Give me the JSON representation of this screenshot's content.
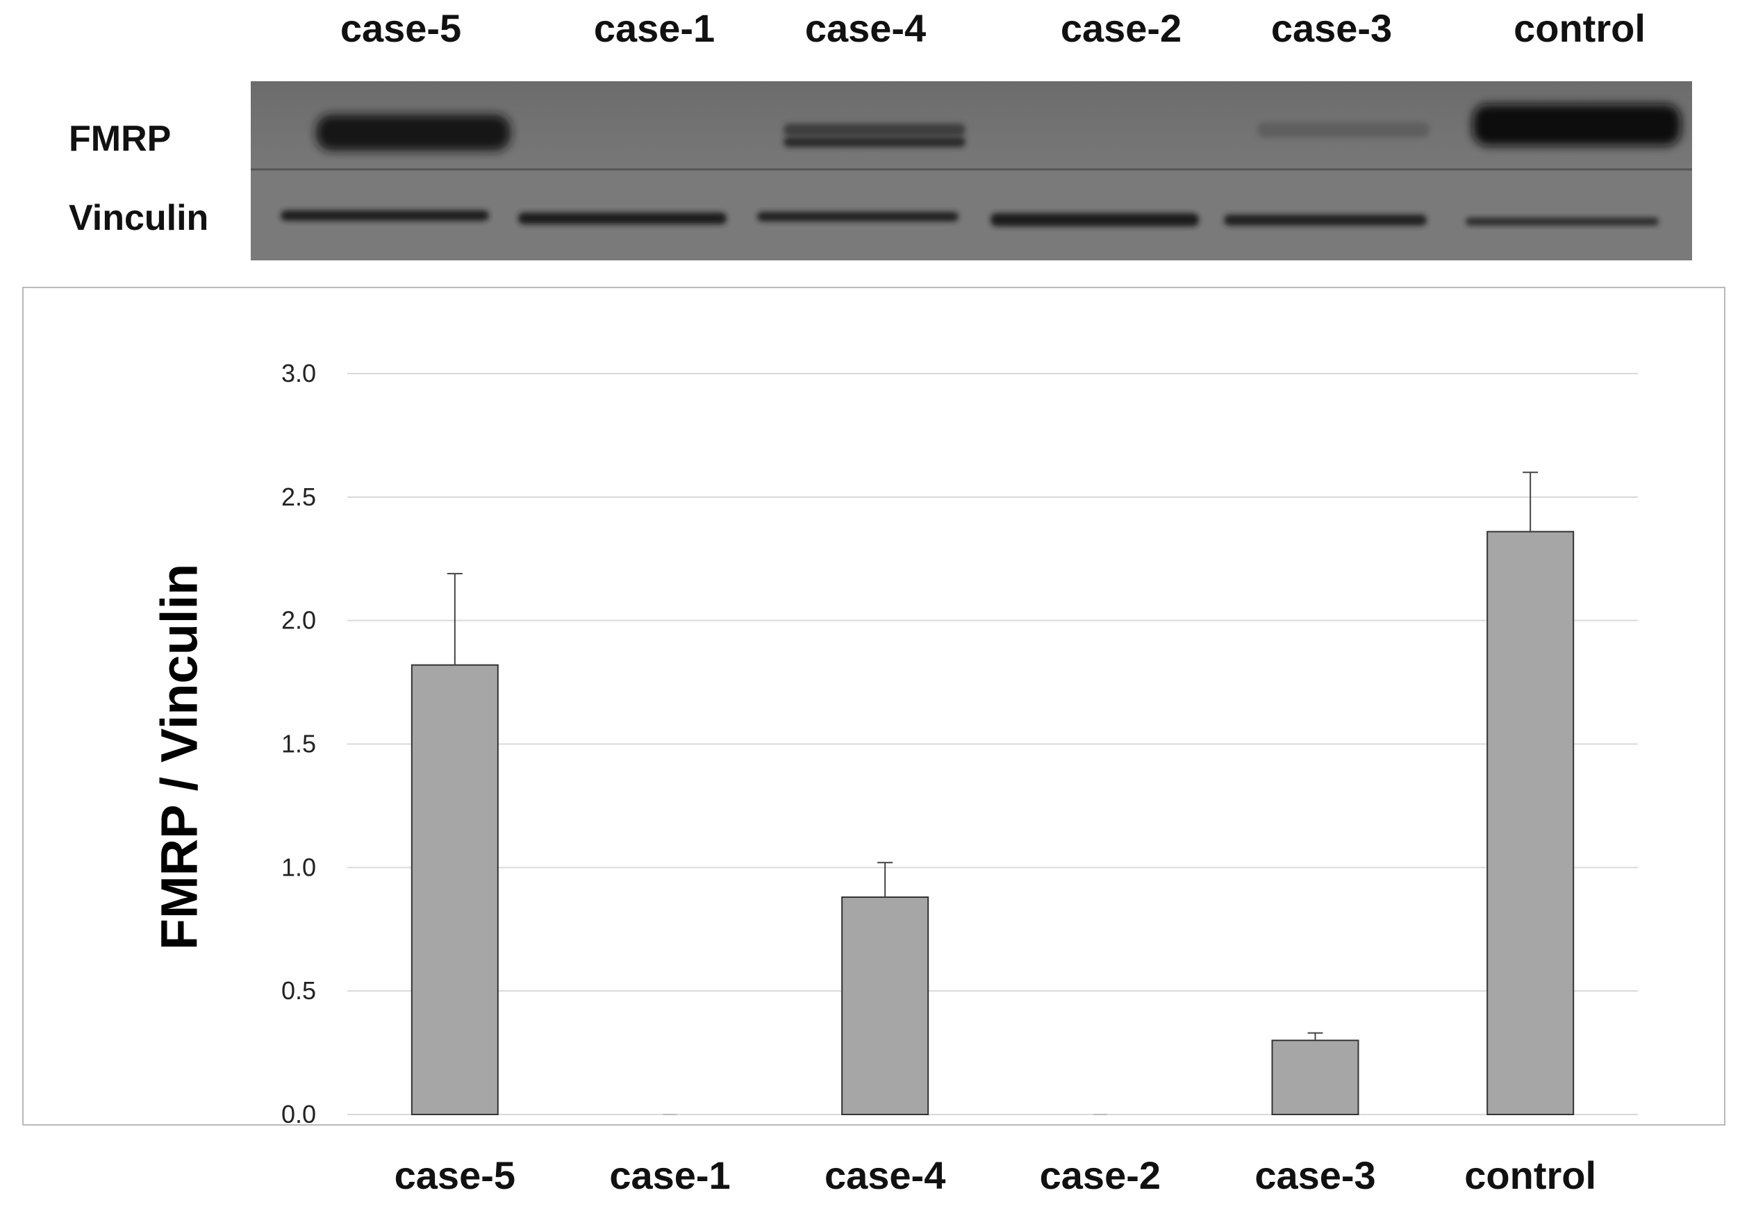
{
  "blot": {
    "lanes": [
      "case-5",
      "case-1",
      "case-4",
      "case-2",
      "case-3",
      "control"
    ],
    "rows": [
      "FMRP",
      "Vinculin"
    ]
  },
  "chart_data": {
    "type": "bar",
    "ylabel": "FMRP / Vinculin",
    "categories": [
      "case-5",
      "case-1",
      "case-4",
      "case-2",
      "case-3",
      "control"
    ],
    "values": [
      1.82,
      0.0,
      0.88,
      0.0,
      0.3,
      2.36
    ],
    "error_plus": [
      0.37,
      0.0,
      0.14,
      0.0,
      0.03,
      0.24
    ],
    "ylim": [
      0,
      3.0
    ],
    "yticks": [
      "0.0",
      "0.5",
      "1.0",
      "1.5",
      "2.0",
      "2.5",
      "3.0"
    ],
    "grid": true,
    "bar_color": "#a6a6a6",
    "bar_edge_color": "#333333"
  }
}
